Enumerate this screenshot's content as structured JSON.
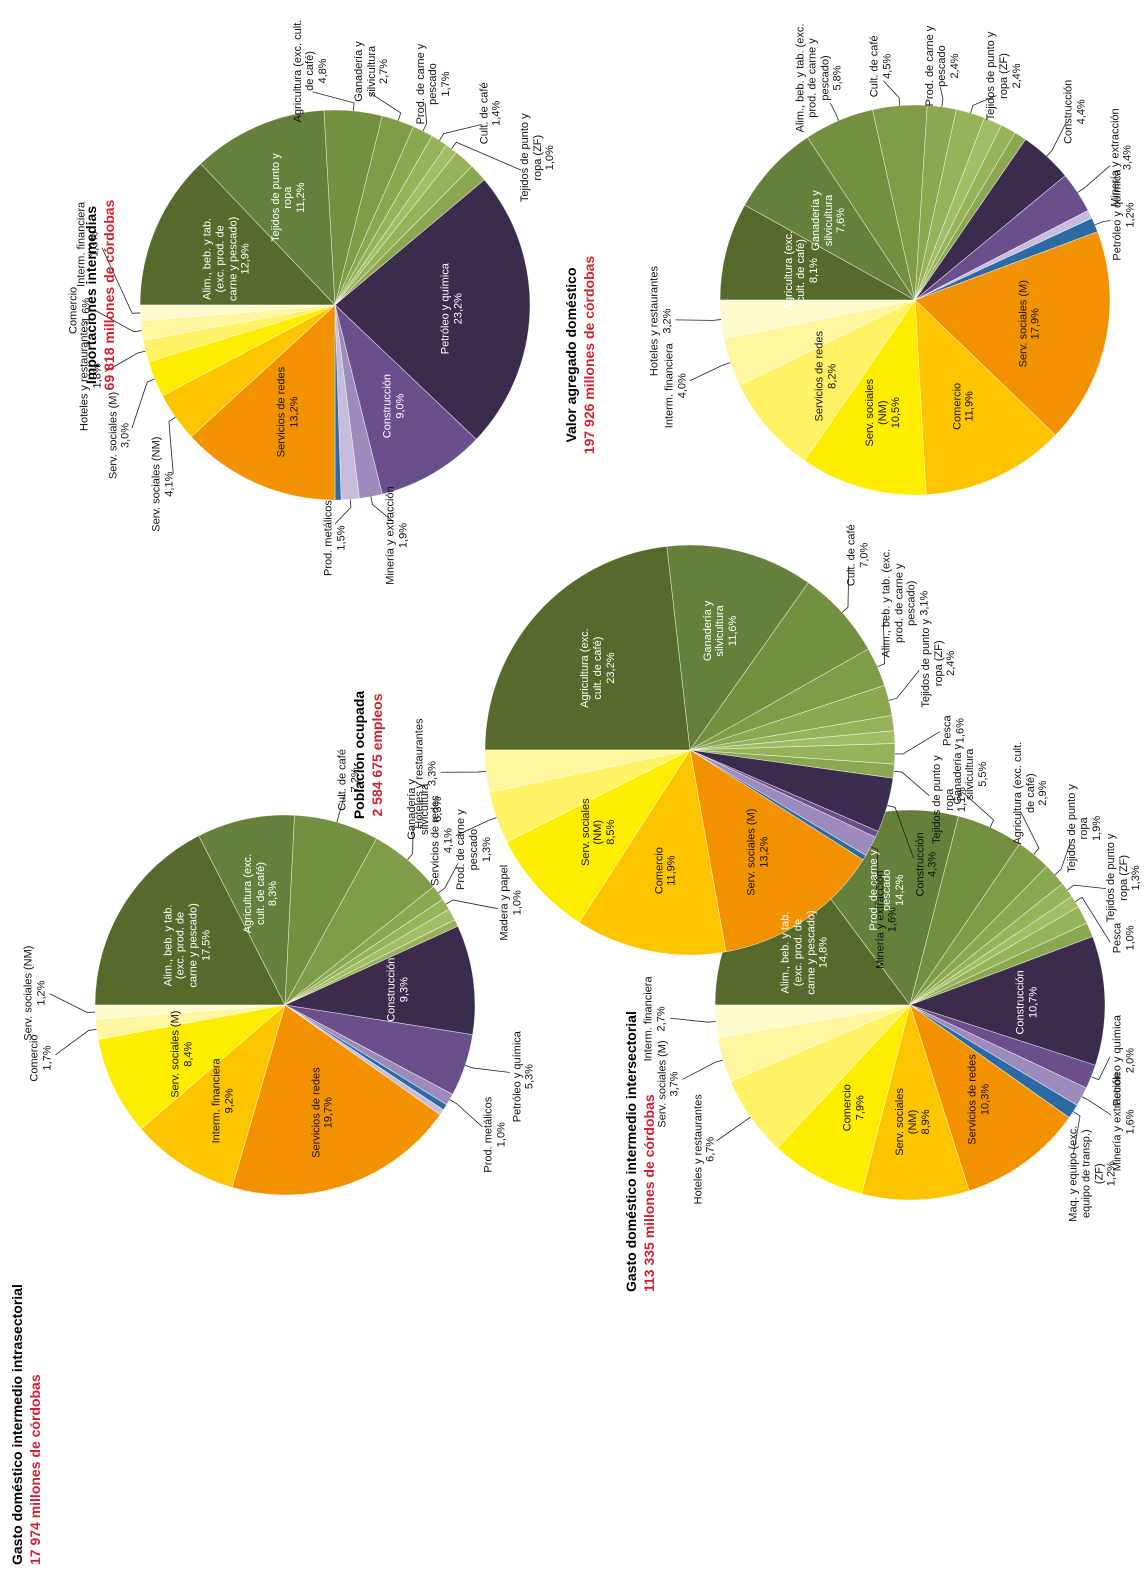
{
  "chart_data": [
    {
      "type": "pie",
      "title": "Gasto doméstico intermedio intrasectorial",
      "subtitle": "17 974 millones de córdobas",
      "categories": [
        "Alim., beb. y tab. (exc. prod. de carne y pescado)",
        "Agricultura (exc. cult. de café)",
        "Cult. de café",
        "Ganadería y silvicultura",
        "Prod. de carne y pescado",
        "Madera y papel",
        null,
        null,
        "Construcción",
        "Petróleo y química",
        "Prod. metálicos",
        null,
        null,
        "Servicios de redes",
        "Interm. financiera",
        "Serv. sociales (M)",
        "Comercio",
        "Serv. sociales (NM)"
      ],
      "values": [
        17.5,
        8.3,
        7.2,
        6.3,
        1.3,
        1.0,
        1.0,
        0.6,
        9.3,
        5.3,
        1.0,
        0.5,
        0.5,
        19.7,
        9.2,
        8.4,
        1.7,
        1.2
      ],
      "value_labels": [
        "17,5%",
        "8,3%",
        "7,2%",
        "6,3%",
        "1,3%",
        "1,0%",
        null,
        null,
        "9,3%",
        "5,3%",
        "1,0%",
        null,
        null,
        "19,7%",
        "9,2%",
        "8,4%",
        "1,7%",
        "1,2%"
      ],
      "colors": [
        "#566a2c",
        "#64803a",
        "#72903f",
        "#7f9c46",
        "#8aa84f",
        "#97b35a",
        "#a3bd66",
        "#97b35a",
        "#3b2c4e",
        "#6b4f8c",
        "#9d8bbd",
        "#2c6aa3",
        "#c6bcdc",
        "#f39200",
        "#fdc400",
        "#ffed00",
        "#fff7a0",
        "#fffbcd"
      ]
    },
    {
      "type": "pie",
      "title": "Gasto doméstico intermedio intersectorial",
      "subtitle": "113 335 millones de córdobas",
      "categories": [
        "Alim., beb. y tab. (exc. prod. de carne y pescado)",
        "Prod. de carne y pescado",
        "Ganadería y silvicultura",
        "Agricultura (exc. cult. de café)",
        "Tejidos de punto y ropa",
        "Tejidos de punto y ropa (ZF)",
        "Pesca",
        null,
        null,
        "Construcción",
        "Petróleo y química",
        "Minería y extracción",
        "Maq. y equipo (exc. equipo de transp.) (ZF)",
        "Servicios de redes",
        "Serv. sociales (NM)",
        "Comercio",
        "Hoteles y restaurantes",
        "Serv. sociales (M)",
        "Interm. financiera"
      ],
      "values": [
        14.8,
        14.2,
        5.5,
        2.9,
        1.9,
        1.3,
        1.0,
        1.5,
        1.2,
        10.7,
        2.0,
        1.6,
        1.2,
        10.3,
        8.9,
        7.9,
        6.7,
        3.7,
        2.7
      ],
      "value_labels": [
        "14,8%",
        "14,2%",
        "5,5%",
        "2,9%",
        "1,9%",
        "1,3%",
        "1,0%",
        null,
        null,
        "10,7%",
        "2,0%",
        "1,6%",
        "1,2%",
        "10,3%",
        "8,9%",
        "7,9%",
        "6,7%",
        "3,7%",
        "2,7%"
      ],
      "colors": [
        "#566a2c",
        "#64803a",
        "#72903f",
        "#7f9c46",
        "#8aa84f",
        "#97b35a",
        "#a3bd66",
        "#97b35a",
        "#8aa84f",
        "#3b2c4e",
        "#6b4f8c",
        "#9d8bbd",
        "#2c6aa3",
        "#f39200",
        "#fdc400",
        "#ffed00",
        "#fff264",
        "#fff7a0",
        "#fffbcd"
      ]
    },
    {
      "type": "pie",
      "title": "Población ocupada",
      "subtitle": "2 584 675 empleos",
      "categories": [
        "Agricultura (exc. cult. de café)",
        "Ganadería y silvicultura",
        "Cult. de café",
        "Alim., beb. y tab. (exc. prod. de carne y pescado)",
        "Tejidos de punto y ropa (ZF)",
        null,
        null,
        "Pesca",
        "Tejidos de punto y ropa",
        "Construcción",
        null,
        "Minería y extracción",
        null,
        "Serv. sociales (M)",
        "Comercio",
        "Serv. sociales (NM)",
        "Servicios de redes",
        "Hoteles y restaurantes"
      ],
      "values": [
        23.2,
        11.6,
        7.0,
        3.1,
        2.4,
        1.2,
        1.0,
        1.6,
        1.1,
        4.3,
        0.5,
        1.6,
        0.4,
        13.2,
        11.9,
        8.5,
        4.1,
        3.3
      ],
      "value_labels": [
        "23,2%",
        "11,6%",
        "7,0%",
        "3,1%",
        "2,4%",
        null,
        null,
        "1,6%",
        "1,1%",
        "4,3%",
        null,
        "1,6%",
        null,
        "13,2%",
        "11,9%",
        "8,5%",
        "4,1%",
        "3,3%"
      ],
      "colors": [
        "#566a2c",
        "#64803a",
        "#72903f",
        "#7f9c46",
        "#8aa84f",
        "#97b35a",
        "#a3bd66",
        "#97b35a",
        "#8aa84f",
        "#3b2c4e",
        "#6b4f8c",
        "#9d8bbd",
        "#2c6aa3",
        "#f39200",
        "#fdc400",
        "#ffed00",
        "#fff264",
        "#fff7a0"
      ]
    },
    {
      "type": "pie",
      "title": "Importaciones intermedias",
      "subtitle": "69 818 millones de córdobas",
      "categories": [
        "Alim., beb. y tab. (exc. prod. de carne y pescado)",
        "Tejidos de punto y ropa",
        "Agricultura (exc. cult. de café)",
        "Ganadería y silvicultura",
        "Prod. de carne y pescado",
        "Cult. de café",
        "Tejidos de punto y ropa (ZF)",
        null,
        null,
        "Petróleo y química",
        "Construcción",
        "Minería y extracción",
        "Prod. metálicos",
        null,
        "Servicios de redes",
        "Serv. sociales (NM)",
        "Serv. sociales (M)",
        "Hoteles y restaurantes",
        "Comercio",
        "Interm. financiera"
      ],
      "values": [
        12.9,
        11.2,
        4.8,
        2.7,
        1.7,
        1.4,
        1.0,
        1.7,
        1.5,
        23.2,
        9.0,
        1.9,
        1.5,
        0.5,
        13.2,
        4.1,
        3.0,
        1.8,
        1.6,
        1.3
      ],
      "value_labels": [
        "12,9%",
        "11,2%",
        "4,8%",
        "2,7%",
        "1,7%",
        "1,4%",
        "1,0%",
        null,
        null,
        "23,2%",
        "9,0%",
        "1,9%",
        "1,5%",
        null,
        "13,2%",
        "4,1%",
        "3,0%",
        "1,8%",
        "1,6%",
        "1,3%"
      ],
      "colors": [
        "#566a2c",
        "#64803a",
        "#72903f",
        "#7f9c46",
        "#8aa84f",
        "#97b35a",
        "#a3bd66",
        "#97b35a",
        "#8aa84f",
        "#3b2c4e",
        "#6b4f8c",
        "#9d8bbd",
        "#c6bcdc",
        "#2c6aa3",
        "#f39200",
        "#fdc400",
        "#ffed00",
        "#fff264",
        "#fff7a0",
        "#fffbcd"
      ]
    },
    {
      "type": "pie",
      "title": "Valor agregado doméstico",
      "subtitle": "197 926 millones de córdobas",
      "categories": [
        "Agricultura (exc. cult. de café)",
        "Ganadería y silvicultura",
        "Alim., beb. y tab. (exc. prod. de carne y pescado)",
        "Cult. de café",
        "Prod. de carne y pescado",
        "Tejidos de punto y ropa (ZF)",
        null,
        null,
        null,
        "Construcción",
        "Minería y extracción",
        null,
        "Petróleo y química",
        "Serv. sociales (M)",
        "Comercio",
        "Serv. sociales (NM)",
        "Servicios de redes",
        "Interm. financiera",
        "Hoteles y restaurantes"
      ],
      "values": [
        8.1,
        7.6,
        5.8,
        4.5,
        2.4,
        2.4,
        1.5,
        1.3,
        1.0,
        4.4,
        3.4,
        0.7,
        1.2,
        17.9,
        11.9,
        10.5,
        8.2,
        4.0,
        3.2
      ],
      "value_labels": [
        "8,1%",
        "7,6%",
        "5,8%",
        "4,5%",
        "2,4%",
        "2,4%",
        null,
        null,
        null,
        "4,4%",
        "3,4%",
        null,
        "1,2%",
        "17,9%",
        "11,9%",
        "10,5%",
        "8,2%",
        "4,0%",
        "3,2%"
      ],
      "colors": [
        "#566a2c",
        "#64803a",
        "#72903f",
        "#7f9c46",
        "#8aa84f",
        "#97b35a",
        "#a3bd66",
        "#97b35a",
        "#8aa84f",
        "#3b2c4e",
        "#6b4f8c",
        "#c6bcdc",
        "#2c6aa3",
        "#f39200",
        "#fdc400",
        "#ffed00",
        "#fff264",
        "#fff7a0",
        "#fffbcd"
      ]
    }
  ]
}
